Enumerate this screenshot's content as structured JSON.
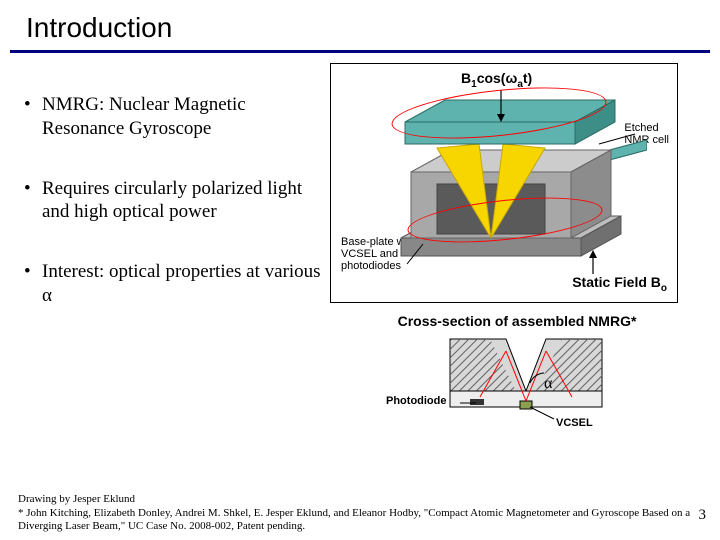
{
  "title": "Introduction",
  "bullets": [
    "NMRG: Nuclear Magnetic Resonance Gyroscope",
    "Requires circularly polarized light and high optical power",
    "Interest: optical properties at various α"
  ],
  "figure": {
    "b1_label_html": "B<sub>1</sub>cos(ω<sub>a</sub>t)",
    "static_label_html": "Static Field B<sub>o</sub>",
    "etched_label": "Etched\nNMR cell",
    "baseplate_label": "Base-plate with\nVCSEL and\nphotodiodes",
    "colors": {
      "top_slab": "#5fb3ae",
      "top_slab_side": "#3e8e88",
      "cavity_front": "#a8a8a8",
      "cavity_top": "#cccccc",
      "base_front": "#888888",
      "base_top": "#bdbdbd",
      "cone": "#f7d600",
      "cone_stroke": "#c9a800",
      "rod": "#5fb3ae",
      "ellipse": "#ff0000"
    }
  },
  "cross_section": {
    "caption": "Cross-section of assembled NMRG*",
    "photodiode_label": "Photodiode",
    "vcsel_label": "VCSEL",
    "alpha_label": "α",
    "colors": {
      "hatch": "#606060",
      "fill": "#d8d8d8",
      "vcsel": "#8aa050",
      "pd": "#333333",
      "ray": "#ff0000"
    }
  },
  "footer": {
    "line1": "Drawing by Jesper Eklund",
    "line2": "* John Kitching, Elizabeth Donley, Andrei M. Shkel, E. Jesper Eklund, and Eleanor Hodby, \"Compact Atomic Magnetometer and Gyroscope Based on a Diverging Laser Beam,\" UC Case No. 2008-002, Patent pending."
  },
  "page_number": "3"
}
